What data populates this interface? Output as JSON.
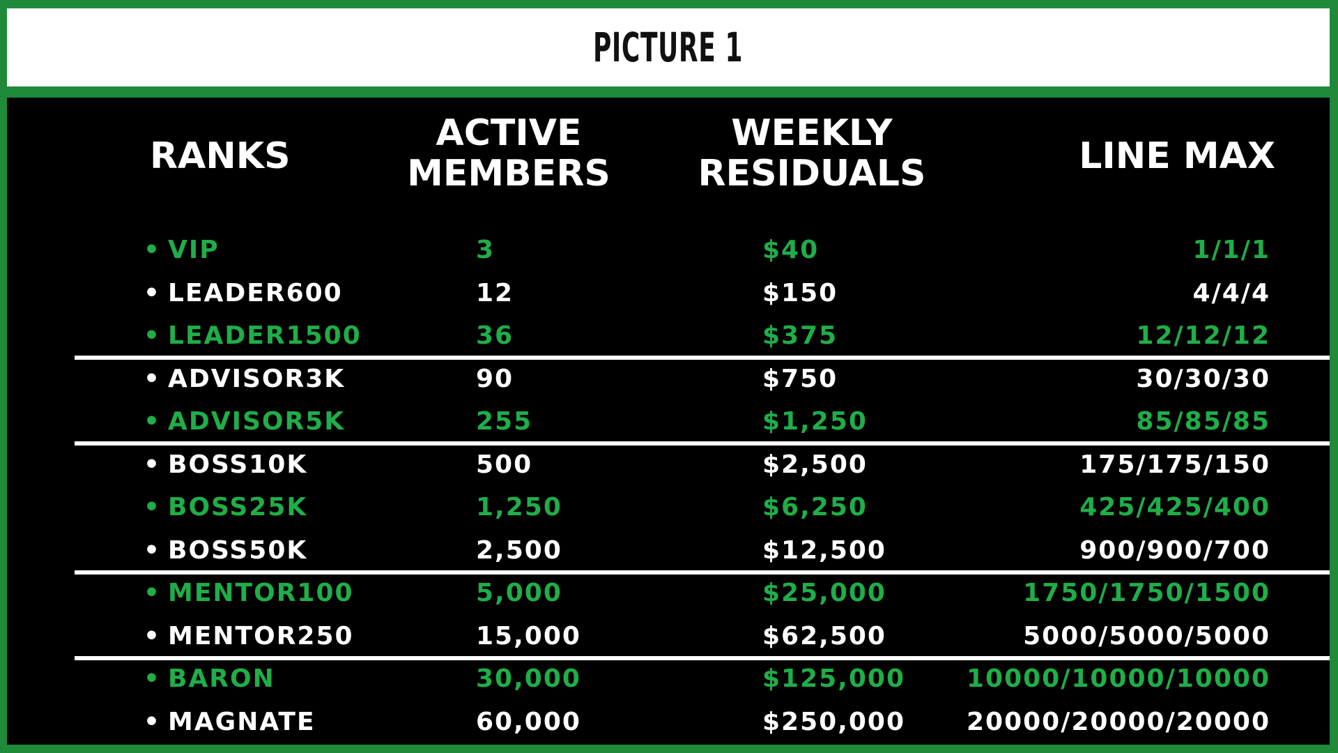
{
  "title": "PICTURE 1",
  "headers": {
    "ranks": "RANKS",
    "active_line1": "ACTIVE",
    "active_line2": "MEMBERS",
    "weekly_line1": "WEEKLY",
    "weekly_line2": "RESIDUALS",
    "line_max": "LINE MAX"
  },
  "bullet": "•",
  "rows": [
    {
      "rank": "VIP",
      "active": "3",
      "weekly": "$40",
      "line_max": "1/1/1"
    },
    {
      "rank": "LEADER600",
      "active": "12",
      "weekly": "$150",
      "line_max": "4/4/4"
    },
    {
      "rank": "LEADER1500",
      "active": "36",
      "weekly": "$375",
      "line_max": "12/12/12"
    },
    {
      "rank": "ADVISOR3K",
      "active": "90",
      "weekly": "$750",
      "line_max": "30/30/30"
    },
    {
      "rank": "ADVISOR5K",
      "active": "255",
      "weekly": "$1,250",
      "line_max": "85/85/85"
    },
    {
      "rank": "BOSS10K",
      "active": "500",
      "weekly": "$2,500",
      "line_max": "175/175/150"
    },
    {
      "rank": "BOSS25K",
      "active": "1,250",
      "weekly": "$6,250",
      "line_max": "425/425/400"
    },
    {
      "rank": "BOSS50K",
      "active": "2,500",
      "weekly": "$12,500",
      "line_max": "900/900/700"
    },
    {
      "rank": "MENTOR100",
      "active": "5,000",
      "weekly": "$25,000",
      "line_max": "1750/1750/1500"
    },
    {
      "rank": "MENTOR250",
      "active": "15,000",
      "weekly": "$62,500",
      "line_max": "5000/5000/5000"
    },
    {
      "rank": "BARON",
      "active": "30,000",
      "weekly": "$125,000",
      "line_max": "10000/10000/10000"
    },
    {
      "rank": "MAGNATE",
      "active": "60,000",
      "weekly": "$250,000",
      "line_max": "20000/20000/20000"
    }
  ],
  "colors": {
    "frame": "#1f8a3a",
    "accent_text": "#1fae48",
    "text": "#ffffff",
    "background": "#000000"
  }
}
